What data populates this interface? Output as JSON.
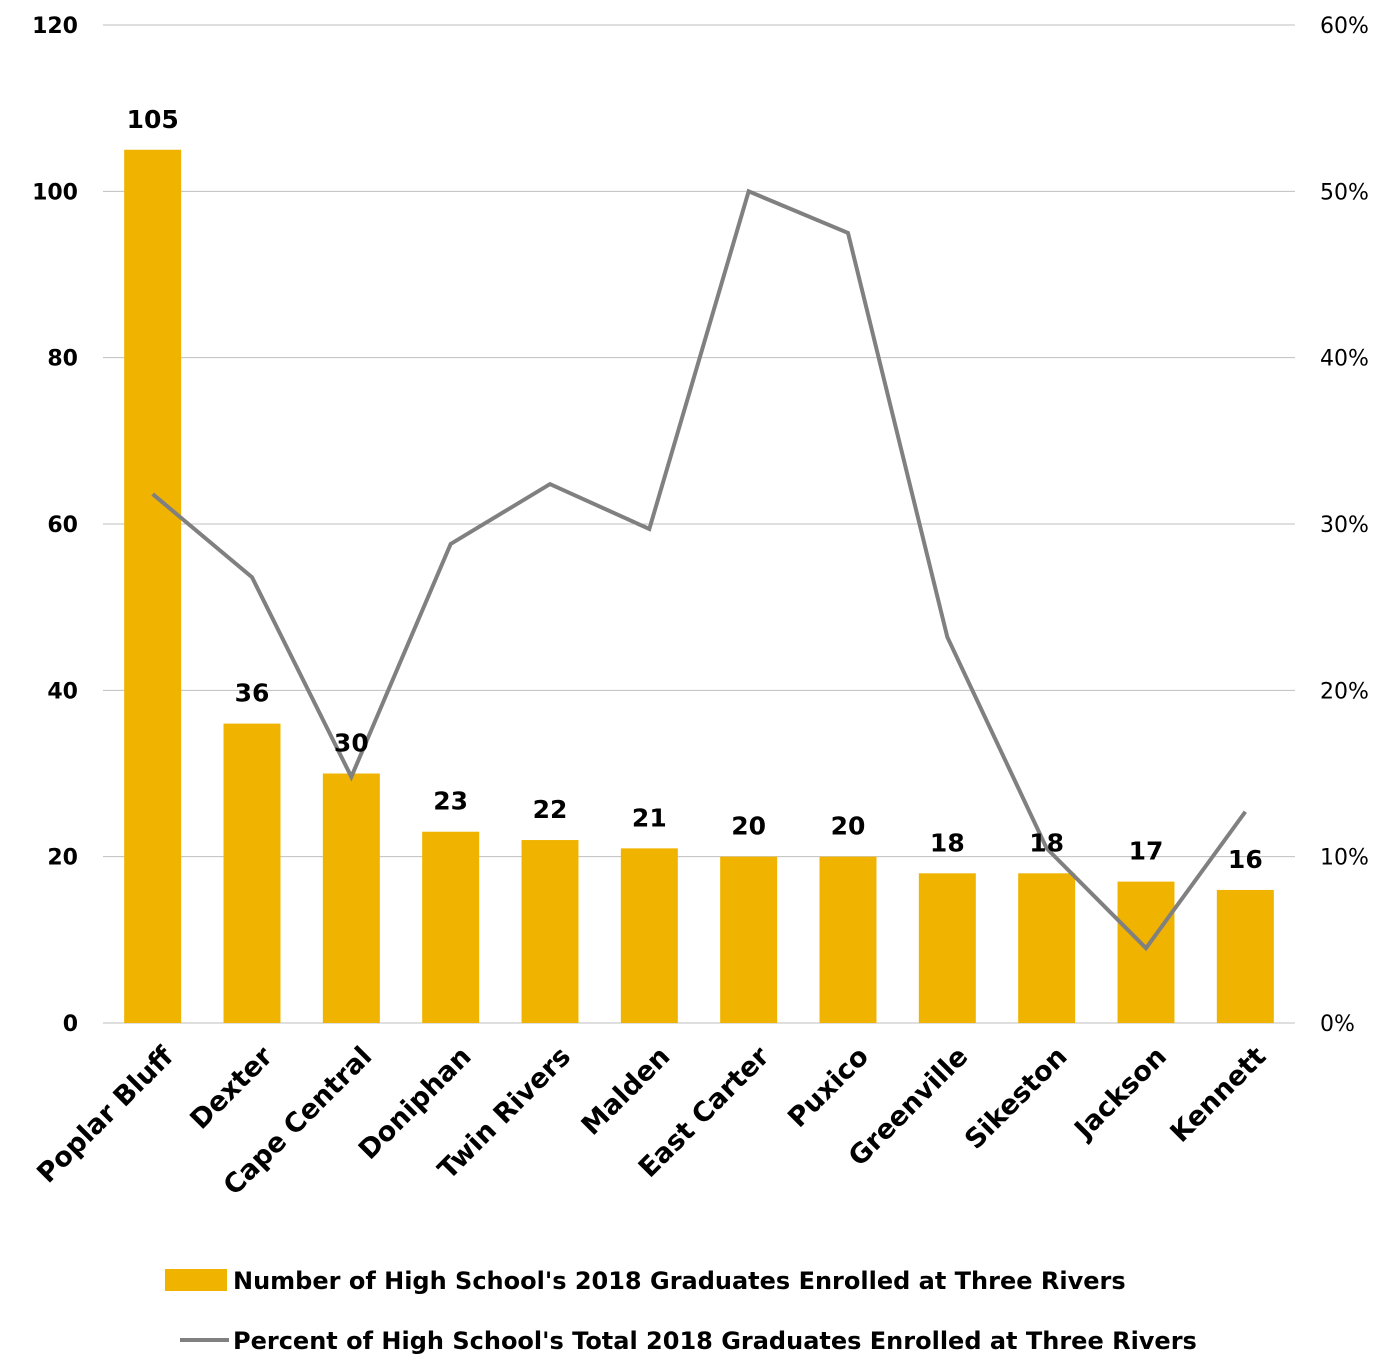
{
  "chart_data": {
    "type": "bar",
    "categories": [
      "Poplar Bluff",
      "Dexter",
      "Cape Central",
      "Doniphan",
      "Twin Rivers",
      "Malden",
      "East Carter",
      "Puxico",
      "Greenville",
      "Sikeston",
      "Jackson",
      "Kennett"
    ],
    "series": [
      {
        "name": "Number of High School's 2018 Graduates Enrolled at Three Rivers",
        "type": "bar",
        "axis": "left",
        "color": "#F0B400",
        "values": [
          105,
          36,
          30,
          23,
          22,
          21,
          20,
          20,
          18,
          18,
          17,
          16
        ]
      },
      {
        "name": "Percent of High School's Total 2018 Graduates Enrolled at Three Rivers",
        "type": "line",
        "axis": "right",
        "color": "#808080",
        "values": [
          0.318,
          0.268,
          0.148,
          0.288,
          0.324,
          0.297,
          0.5,
          0.475,
          0.232,
          0.105,
          0.045,
          0.127
        ]
      }
    ],
    "title": "",
    "xlabel": "",
    "ylabel": "",
    "ylim": [
      0,
      120
    ],
    "y_ticks": [
      "0",
      "20",
      "40",
      "60",
      "80",
      "100",
      "120"
    ],
    "y2lim": [
      0,
      0.6
    ],
    "y2_ticks": [
      "0%",
      "10%",
      "20%",
      "30%",
      "40%",
      "50%",
      "60%"
    ],
    "grid": true,
    "legend_position": "bottom"
  }
}
